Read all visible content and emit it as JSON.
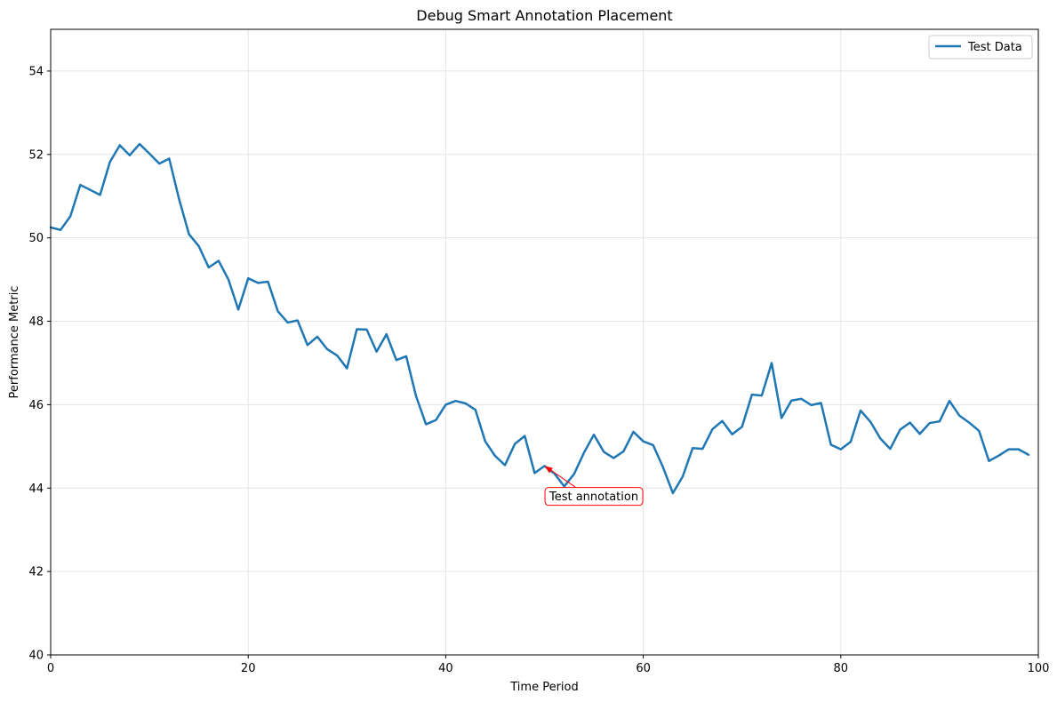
{
  "chart_data": {
    "type": "line",
    "title": "Debug Smart Annotation Placement",
    "xlabel": "Time Period",
    "ylabel": "Performance Metric",
    "xlim": [
      0,
      100
    ],
    "ylim": [
      40,
      55
    ],
    "xticks": [
      0,
      20,
      40,
      60,
      80,
      100
    ],
    "yticks": [
      40,
      42,
      44,
      46,
      48,
      50,
      52,
      54
    ],
    "grid": true,
    "legend": {
      "position": "upper right",
      "entries": [
        "Test Data"
      ]
    },
    "series": [
      {
        "name": "Test Data",
        "color": "#1f77b4",
        "x": [
          0,
          1,
          2,
          3,
          4,
          5,
          6,
          7,
          8,
          9,
          10,
          11,
          12,
          13,
          14,
          15,
          16,
          17,
          18,
          19,
          20,
          21,
          22,
          23,
          24,
          25,
          26,
          27,
          28,
          29,
          30,
          31,
          32,
          33,
          34,
          35,
          36,
          37,
          38,
          39,
          40,
          41,
          42,
          43,
          44,
          45,
          46,
          47,
          48,
          49,
          50,
          51,
          52,
          53,
          54,
          55,
          56,
          57,
          58,
          59,
          60,
          61,
          62,
          63,
          64,
          65,
          66,
          67,
          68,
          69,
          70,
          71,
          72,
          73,
          74,
          75,
          76,
          77,
          78,
          79,
          80,
          81,
          82,
          83,
          84,
          85,
          86,
          87,
          88,
          89,
          90,
          91,
          92,
          93,
          94,
          95,
          96,
          97,
          98,
          99
        ],
        "values": [
          50.25,
          50.19,
          50.52,
          51.27,
          51.15,
          51.03,
          51.82,
          52.22,
          51.98,
          52.25,
          52.02,
          51.78,
          51.9,
          50.93,
          50.09,
          49.8,
          49.29,
          49.45,
          49.0,
          48.28,
          49.03,
          48.92,
          48.95,
          48.24,
          47.97,
          48.02,
          47.43,
          47.63,
          47.33,
          47.18,
          46.87,
          47.81,
          47.8,
          47.27,
          47.69,
          47.07,
          47.16,
          46.2,
          45.53,
          45.63,
          46.0,
          46.09,
          46.03,
          45.88,
          45.12,
          44.77,
          44.55,
          45.06,
          45.25,
          44.36,
          44.53,
          44.35,
          44.04,
          44.34,
          44.85,
          45.28,
          44.87,
          44.72,
          44.88,
          45.35,
          45.12,
          45.03,
          44.5,
          43.88,
          44.28,
          44.96,
          44.94,
          45.41,
          45.61,
          45.29,
          45.47,
          46.24,
          46.22,
          47.0,
          45.68,
          46.1,
          46.14,
          45.99,
          46.04,
          45.04,
          44.93,
          45.11,
          45.86,
          45.59,
          45.19,
          44.94,
          45.4,
          45.57,
          45.3,
          45.56,
          45.6,
          46.09,
          45.74,
          45.57,
          45.37,
          44.65,
          44.78,
          44.93,
          44.93,
          44.8
        ]
      }
    ],
    "annotations": [
      {
        "text": "Test annotation",
        "x": 50,
        "y": 44.53,
        "text_x": 55,
        "text_y": 43.8,
        "color": "#ff0000"
      }
    ]
  }
}
